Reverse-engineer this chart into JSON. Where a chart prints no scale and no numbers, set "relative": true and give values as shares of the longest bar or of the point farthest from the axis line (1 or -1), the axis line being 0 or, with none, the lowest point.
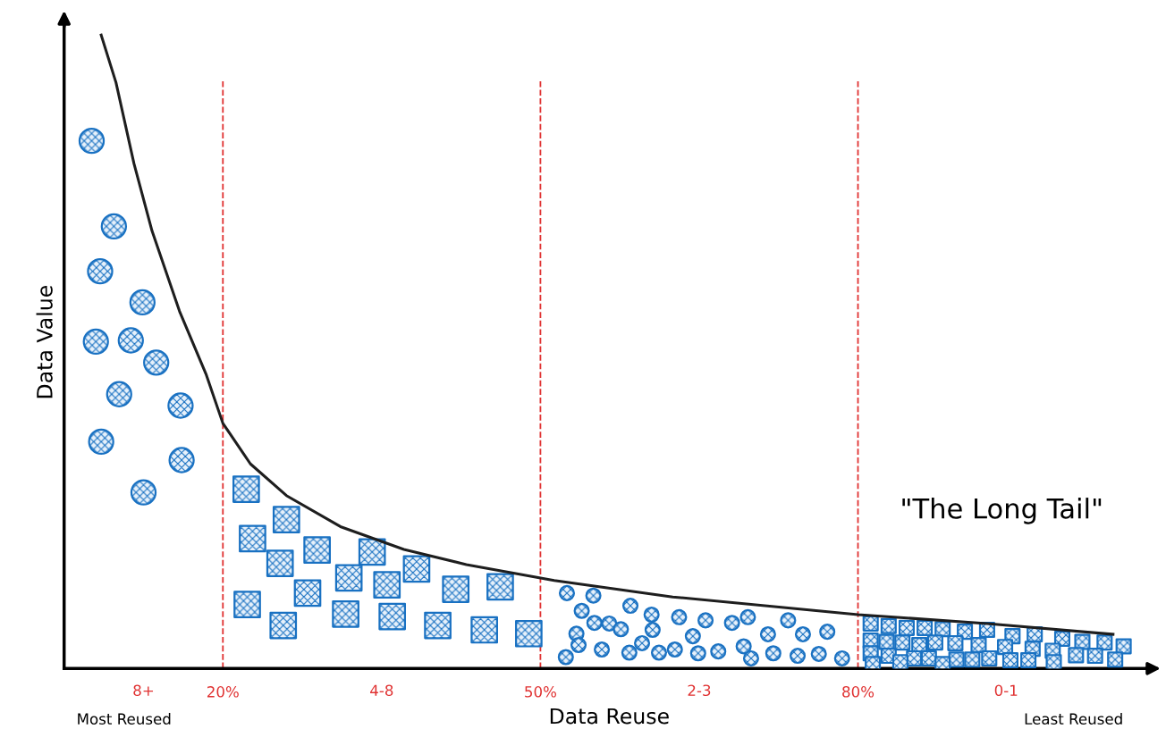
{
  "chart_data": {
    "type": "scatter",
    "xlabel": "Data Reuse",
    "ylabel": "Data Value",
    "relative": true,
    "xlim": [
      5,
      108
    ],
    "xticks": [
      {
        "value": 20,
        "label": "20%"
      },
      {
        "value": 50,
        "label": "50%"
      },
      {
        "value": 80,
        "label": "80%"
      }
    ],
    "ref_lines": [
      {
        "axis": "x",
        "value": 20,
        "color": "#e03131",
        "line_style": "dashed"
      },
      {
        "axis": "x",
        "value": 50,
        "color": "#e03131",
        "line_style": "dashed"
      },
      {
        "axis": "x",
        "value": 80,
        "color": "#e03131",
        "line_style": "dashed"
      }
    ],
    "annotations": [
      "8+",
      "4-8",
      "2-3",
      "0-1",
      "Most Reused",
      "Least Reused",
      "\"The Long Tail\""
    ],
    "grid": false,
    "legend": false,
    "series": [
      {
        "marker": "circle",
        "color": "#1971c2",
        "x": [
          7.6,
          9.7,
          8.4,
          12.4,
          8.0,
          11.3,
          13.7,
          10.2,
          16.0,
          8.5,
          16.1,
          12.5
        ],
        "values": [
          0.833,
          0.698,
          0.627,
          0.578,
          0.516,
          0.518,
          0.483,
          0.433,
          0.415,
          0.358,
          0.329,
          0.278
        ]
      },
      {
        "marker": "square",
        "color": "#1971c2",
        "x": [
          22.2,
          26.0,
          22.8,
          28.9,
          34.1,
          25.4,
          31.9,
          35.5,
          38.3,
          42.0,
          46.2,
          28.0,
          22.3,
          31.6,
          36.0,
          25.7,
          40.3,
          44.7,
          48.9
        ],
        "values": [
          0.283,
          0.235,
          0.205,
          0.187,
          0.184,
          0.166,
          0.143,
          0.132,
          0.157,
          0.125,
          0.129,
          0.119,
          0.101,
          0.086,
          0.082,
          0.068,
          0.068,
          0.061,
          0.055
        ]
      },
      {
        "marker": "circle",
        "color": "#1971c2",
        "x": [
          52.5,
          55.0,
          53.9,
          55.1,
          56.5,
          57.6,
          58.5,
          60.5,
          53.4,
          53.6,
          52.4,
          55.8,
          58.4,
          59.6,
          60.6,
          61.2,
          63.1,
          62.7,
          64.4,
          64.9,
          65.6,
          66.8,
          68.1,
          69.6,
          69.2,
          69.9,
          71.5,
          72.0,
          73.4,
          74.3,
          74.8,
          76.3,
          77.1,
          78.5
        ],
        "values": [
          0.119,
          0.115,
          0.091,
          0.072,
          0.071,
          0.062,
          0.099,
          0.085,
          0.055,
          0.037,
          0.018,
          0.03,
          0.025,
          0.04,
          0.061,
          0.025,
          0.081,
          0.03,
          0.051,
          0.024,
          0.076,
          0.027,
          0.072,
          0.081,
          0.035,
          0.016,
          0.054,
          0.024,
          0.076,
          0.02,
          0.054,
          0.023,
          0.058,
          0.016
        ]
      },
      {
        "marker": "square",
        "color": "#1971c2",
        "x": [
          81.2,
          82.9,
          84.6,
          86.3,
          88.0,
          90.1,
          92.2,
          94.6,
          96.7,
          99.3,
          101.2,
          103.3,
          105.1,
          81.2,
          82.7,
          84.2,
          85.8,
          87.3,
          89.2,
          91.4,
          93.9,
          96.5,
          98.4,
          100.6,
          102.4,
          104.3,
          81.2,
          82.9,
          85.3,
          86.7,
          89.3,
          90.8,
          92.4,
          94.4,
          96.1,
          98.5,
          81.4,
          84.0,
          88.0
        ],
        "values": [
          0.071,
          0.067,
          0.064,
          0.064,
          0.062,
          0.058,
          0.061,
          0.051,
          0.054,
          0.047,
          0.042,
          0.041,
          0.035,
          0.044,
          0.042,
          0.041,
          0.037,
          0.041,
          0.04,
          0.037,
          0.034,
          0.031,
          0.028,
          0.021,
          0.02,
          0.014,
          0.024,
          0.02,
          0.016,
          0.016,
          0.014,
          0.014,
          0.016,
          0.013,
          0.013,
          0.01,
          0.007,
          0.01,
          0.007
        ]
      },
      {
        "type": "line",
        "marker": "none",
        "line_style": "solid",
        "color": "#1e1e1e",
        "x": [
          8.5,
          9.9,
          11.6,
          13.3,
          15.9,
          18.4,
          20.0,
          22.6,
          26.0,
          31.1,
          37.1,
          43.0,
          51.3,
          62.5,
          80.0,
          92.2,
          104.1
        ],
        "values": [
          1,
          0.925,
          0.797,
          0.691,
          0.564,
          0.465,
          0.387,
          0.323,
          0.273,
          0.224,
          0.188,
          0.164,
          0.139,
          0.113,
          0.085,
          0.071,
          0.054
        ]
      }
    ]
  }
}
